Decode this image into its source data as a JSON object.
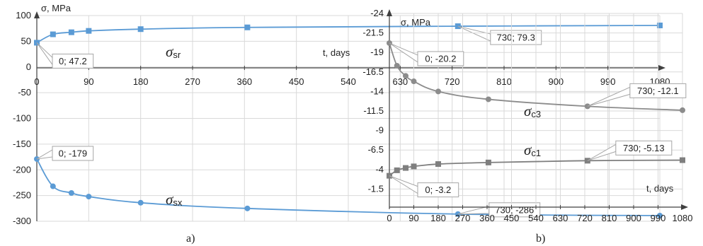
{
  "chart_data": [
    {
      "type": "line",
      "panel_caption": "a)",
      "ylabel": "σ, MPa",
      "xlabel": "t, days",
      "xlim": [
        0,
        1080
      ],
      "ylim": [
        -300,
        100
      ],
      "x_ticks": [
        "0",
        "90",
        "180",
        "270",
        "360",
        "450",
        "540",
        "630",
        "720",
        "810",
        "900",
        "990",
        "1080"
      ],
      "y_ticks": [
        "100",
        "50",
        "0",
        "-50",
        "-100",
        "-150",
        "-200",
        "-250",
        "-300"
      ],
      "grid": true,
      "series": [
        {
          "name": "σsr",
          "symbol": "σ",
          "subscript": "sr",
          "marker": "square",
          "color": "#5b9bd5",
          "x": [
            0,
            28,
            60,
            90,
            180,
            365,
            730,
            1080
          ],
          "y": [
            47.2,
            63.5,
            67.5,
            70.2,
            73.6,
            77.0,
            79.3,
            80.8
          ]
        },
        {
          "name": "σsx",
          "symbol": "σ",
          "subscript": "sx",
          "marker": "circle",
          "color": "#5b9bd5",
          "x": [
            0,
            28,
            60,
            90,
            180,
            365,
            730,
            1080
          ],
          "y": [
            -179,
            -232,
            -245,
            -252,
            -264,
            -275,
            -286,
            -289
          ]
        }
      ],
      "annotations": [
        {
          "text": "0; 47.2",
          "x": 0,
          "y": 47.2
        },
        {
          "text": "730; 79.3",
          "x": 730,
          "y": 79.3
        },
        {
          "text": "0; -179",
          "x": 0,
          "y": -179
        },
        {
          "text": "730; -286",
          "x": 730,
          "y": -286
        }
      ]
    },
    {
      "type": "line",
      "panel_caption": "b)",
      "ylabel": "σ, MPa",
      "xlabel": "t, days",
      "xlim": [
        0,
        1080
      ],
      "ylim": [
        -24,
        1
      ],
      "y_inverted": true,
      "x_ticks": [
        "0",
        "90",
        "180",
        "270",
        "360",
        "450",
        "540",
        "630",
        "720",
        "810",
        "900",
        "990",
        "1080"
      ],
      "y_ticks": [
        "-24",
        "-21.5",
        "-19",
        "-16.5",
        "-14",
        "-11.5",
        "-9",
        "-6.5",
        "-4",
        "-1.5"
      ],
      "grid": true,
      "series": [
        {
          "name": "σc3",
          "symbol": "σ",
          "subscript": "c3",
          "marker": "circle",
          "color": "#8c8c8c",
          "x": [
            0,
            28,
            60,
            90,
            180,
            365,
            730,
            1080
          ],
          "y": [
            -20.2,
            -17.3,
            -16.0,
            -15.3,
            -14.0,
            -13.0,
            -12.1,
            -11.6
          ]
        },
        {
          "name": "σc1",
          "symbol": "σ",
          "subscript": "c1",
          "marker": "square",
          "color": "#7f7f7f",
          "x": [
            0,
            28,
            60,
            90,
            180,
            365,
            730,
            1080
          ],
          "y": [
            -3.2,
            -3.9,
            -4.2,
            -4.4,
            -4.7,
            -4.9,
            -5.13,
            -5.2
          ]
        }
      ],
      "annotations": [
        {
          "text": "0; -20.2",
          "x": 0,
          "y": -20.2
        },
        {
          "text": "730; -12.1",
          "x": 730,
          "y": -12.1
        },
        {
          "text": "730; -5.13",
          "x": 730,
          "y": -5.13
        },
        {
          "text": "0; -3.2",
          "x": 0,
          "y": -3.2
        }
      ]
    }
  ]
}
